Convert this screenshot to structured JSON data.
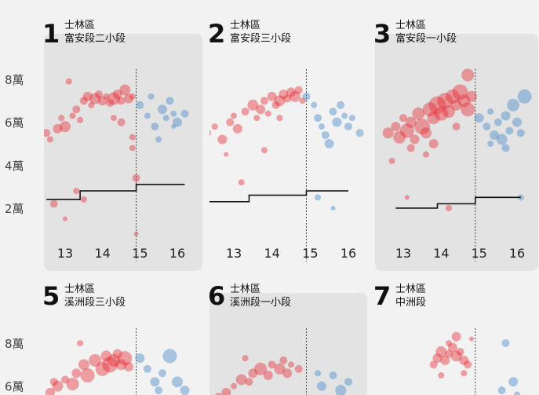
{
  "chart_data": {
    "type": "scatter",
    "y_ticks": [
      {
        "label": "8萬",
        "value": 80000
      },
      {
        "label": "6萬",
        "value": 60000
      },
      {
        "label": "4萬",
        "value": 40000
      },
      {
        "label": "2萬",
        "value": 20000
      }
    ],
    "y_ticks_row2": [
      {
        "label": "8萬",
        "value": 80000
      },
      {
        "label": "6萬",
        "value": 60000
      }
    ],
    "colors": {
      "before": "#e8262f",
      "after": "#3f86c6",
      "panel_bg": "#e3e3e3",
      "step": "#111111"
    },
    "panels": [
      {
        "number": "1",
        "district": "士林區",
        "section": "富安段二小段",
        "shaded": true,
        "x_ticks": [
          "13",
          "14",
          "15",
          "16"
        ],
        "divider_x": 14.9,
        "step_line": [
          [
            12.5,
            24000
          ],
          [
            13.4,
            24000
          ],
          [
            13.4,
            28000
          ],
          [
            14.9,
            28000
          ],
          [
            14.9,
            31000
          ],
          [
            16.2,
            31000
          ]
        ],
        "points_before": [
          [
            12.5,
            55000,
            5
          ],
          [
            12.6,
            52000,
            4
          ],
          [
            12.8,
            57000,
            6
          ],
          [
            12.9,
            62000,
            4
          ],
          [
            13.0,
            58000,
            7
          ],
          [
            13.2,
            63000,
            4
          ],
          [
            13.3,
            66000,
            5
          ],
          [
            13.4,
            61000,
            4
          ],
          [
            13.5,
            70000,
            5
          ],
          [
            13.6,
            72000,
            6
          ],
          [
            13.7,
            68000,
            4
          ],
          [
            13.8,
            71000,
            7
          ],
          [
            13.9,
            73000,
            5
          ],
          [
            14.0,
            70000,
            6
          ],
          [
            14.1,
            72000,
            4
          ],
          [
            14.2,
            69000,
            5
          ],
          [
            14.3,
            71000,
            8
          ],
          [
            14.4,
            73000,
            6
          ],
          [
            14.5,
            70000,
            5
          ],
          [
            14.6,
            75000,
            7
          ],
          [
            14.7,
            71000,
            6
          ],
          [
            14.8,
            72000,
            4
          ],
          [
            14.3,
            62000,
            4
          ],
          [
            14.5,
            60000,
            5
          ],
          [
            13.1,
            79000,
            4
          ],
          [
            13.3,
            28000,
            4
          ],
          [
            13.0,
            15000,
            3
          ],
          [
            12.7,
            22000,
            5
          ],
          [
            14.8,
            53000,
            4
          ],
          [
            13.5,
            24000,
            4
          ],
          [
            14.8,
            48000,
            4
          ],
          [
            14.9,
            8000,
            3
          ],
          [
            14.9,
            34000,
            5
          ]
        ],
        "points_after": [
          [
            15.0,
            68000,
            5
          ],
          [
            15.2,
            63000,
            4
          ],
          [
            15.4,
            58000,
            5
          ],
          [
            15.6,
            66000,
            6
          ],
          [
            15.7,
            62000,
            4
          ],
          [
            15.8,
            70000,
            5
          ],
          [
            15.9,
            64000,
            4
          ],
          [
            16.0,
            60000,
            6
          ],
          [
            16.2,
            64000,
            5
          ],
          [
            15.5,
            52000,
            4
          ],
          [
            15.3,
            72000,
            4
          ],
          [
            15.9,
            58000,
            3
          ]
        ]
      },
      {
        "number": "2",
        "district": "士林區",
        "section": "富安段三小段",
        "shaded": false,
        "x_ticks": [
          "13",
          "14",
          "15",
          "16"
        ],
        "divider_x": 14.9,
        "step_line": [
          [
            12.3,
            23000
          ],
          [
            13.4,
            23000
          ],
          [
            13.4,
            26000
          ],
          [
            14.9,
            26000
          ],
          [
            14.9,
            28000
          ],
          [
            16.0,
            28000
          ]
        ],
        "points_before": [
          [
            12.3,
            55000,
            5
          ],
          [
            12.5,
            58000,
            4
          ],
          [
            12.7,
            52000,
            6
          ],
          [
            12.9,
            60000,
            5
          ],
          [
            13.0,
            63000,
            4
          ],
          [
            13.1,
            57000,
            6
          ],
          [
            13.3,
            65000,
            5
          ],
          [
            13.5,
            68000,
            7
          ],
          [
            13.6,
            62000,
            4
          ],
          [
            13.7,
            66000,
            6
          ],
          [
            13.8,
            70000,
            5
          ],
          [
            13.9,
            64000,
            4
          ],
          [
            14.0,
            72000,
            6
          ],
          [
            14.1,
            68000,
            5
          ],
          [
            14.2,
            70000,
            7
          ],
          [
            14.3,
            73000,
            6
          ],
          [
            14.4,
            71000,
            5
          ],
          [
            14.5,
            74000,
            6
          ],
          [
            14.6,
            72000,
            7
          ],
          [
            14.7,
            75000,
            5
          ],
          [
            14.8,
            70000,
            4
          ],
          [
            13.8,
            47000,
            4
          ],
          [
            12.8,
            45000,
            3
          ],
          [
            13.2,
            32000,
            4
          ],
          [
            14.2,
            62000,
            4
          ]
        ],
        "points_after": [
          [
            14.9,
            72000,
            5
          ],
          [
            15.1,
            68000,
            4
          ],
          [
            15.2,
            62000,
            5
          ],
          [
            15.3,
            58000,
            4
          ],
          [
            15.4,
            54000,
            5
          ],
          [
            15.5,
            50000,
            6
          ],
          [
            15.6,
            65000,
            5
          ],
          [
            15.7,
            60000,
            6
          ],
          [
            15.8,
            68000,
            5
          ],
          [
            15.9,
            63000,
            4
          ],
          [
            16.0,
            58000,
            5
          ],
          [
            16.1,
            62000,
            4
          ],
          [
            16.3,
            55000,
            5
          ],
          [
            15.6,
            20000,
            3
          ],
          [
            15.2,
            25000,
            4
          ]
        ]
      },
      {
        "number": "3",
        "district": "士林區",
        "section": "富安段一小段",
        "shaded": true,
        "x_ticks": [
          "13",
          "14",
          "15",
          "16"
        ],
        "divider_x": 14.9,
        "step_line": [
          [
            12.8,
            20000
          ],
          [
            13.9,
            20000
          ],
          [
            13.9,
            22000
          ],
          [
            14.9,
            22000
          ],
          [
            14.9,
            25000
          ],
          [
            16.1,
            25000
          ]
        ],
        "points_before": [
          [
            12.6,
            55000,
            7
          ],
          [
            12.8,
            58000,
            6
          ],
          [
            12.9,
            53000,
            8
          ],
          [
            13.0,
            62000,
            5
          ],
          [
            13.1,
            56000,
            9
          ],
          [
            13.2,
            60000,
            7
          ],
          [
            13.3,
            52000,
            6
          ],
          [
            13.4,
            64000,
            8
          ],
          [
            13.5,
            58000,
            10
          ],
          [
            13.6,
            55000,
            7
          ],
          [
            13.7,
            66000,
            9
          ],
          [
            13.8,
            62000,
            8
          ],
          [
            13.9,
            68000,
            11
          ],
          [
            14.0,
            64000,
            9
          ],
          [
            14.1,
            70000,
            10
          ],
          [
            14.2,
            65000,
            8
          ],
          [
            14.3,
            72000,
            9
          ],
          [
            14.4,
            68000,
            7
          ],
          [
            14.5,
            74000,
            10
          ],
          [
            14.6,
            70000,
            8
          ],
          [
            14.7,
            66000,
            9
          ],
          [
            14.8,
            72000,
            7
          ],
          [
            13.2,
            48000,
            5
          ],
          [
            13.8,
            50000,
            6
          ],
          [
            14.4,
            58000,
            5
          ],
          [
            14.7,
            82000,
            8
          ],
          [
            13.6,
            45000,
            4
          ],
          [
            12.7,
            42000,
            4
          ],
          [
            14.2,
            20000,
            4
          ],
          [
            13.1,
            25000,
            3
          ]
        ],
        "points_after": [
          [
            15.0,
            62000,
            6
          ],
          [
            15.2,
            58000,
            5
          ],
          [
            15.3,
            65000,
            4
          ],
          [
            15.4,
            54000,
            6
          ],
          [
            15.5,
            60000,
            5
          ],
          [
            15.6,
            52000,
            7
          ],
          [
            15.7,
            63000,
            6
          ],
          [
            15.8,
            56000,
            5
          ],
          [
            15.9,
            68000,
            8
          ],
          [
            16.0,
            60000,
            6
          ],
          [
            16.1,
            55000,
            5
          ],
          [
            16.2,
            72000,
            9
          ],
          [
            15.3,
            50000,
            4
          ],
          [
            15.7,
            48000,
            5
          ],
          [
            16.1,
            25000,
            4
          ]
        ]
      },
      {
        "number": "5",
        "district": "士林區",
        "section": "溪洲段三小段",
        "shaded": false,
        "x_ticks": [],
        "divider_x": 14.9,
        "step_line": [],
        "points_before": [
          [
            12.6,
            57000,
            6
          ],
          [
            12.8,
            60000,
            7
          ],
          [
            13.0,
            63000,
            5
          ],
          [
            13.2,
            61000,
            8
          ],
          [
            13.3,
            66000,
            6
          ],
          [
            13.5,
            70000,
            7
          ],
          [
            13.6,
            65000,
            9
          ],
          [
            13.8,
            72000,
            8
          ],
          [
            14.0,
            68000,
            9
          ],
          [
            14.1,
            74000,
            7
          ],
          [
            14.2,
            70000,
            10
          ],
          [
            14.3,
            72000,
            8
          ],
          [
            14.4,
            75000,
            6
          ],
          [
            14.5,
            70000,
            7
          ],
          [
            14.6,
            73000,
            9
          ],
          [
            14.7,
            69000,
            6
          ],
          [
            13.4,
            80000,
            4
          ],
          [
            12.7,
            62000,
            5
          ]
        ],
        "points_after": [
          [
            15.0,
            73000,
            6
          ],
          [
            15.2,
            68000,
            5
          ],
          [
            15.4,
            62000,
            6
          ],
          [
            15.6,
            66000,
            5
          ],
          [
            15.8,
            74000,
            9
          ],
          [
            16.0,
            62000,
            7
          ],
          [
            16.2,
            58000,
            6
          ],
          [
            15.5,
            58000,
            5
          ]
        ]
      },
      {
        "number": "6",
        "district": "士林區",
        "section": "溪洲段一小段",
        "shaded": true,
        "x_ticks": [],
        "divider_x": 14.9,
        "step_line": [],
        "points_before": [
          [
            12.6,
            55000,
            5
          ],
          [
            12.8,
            57000,
            6
          ],
          [
            13.0,
            60000,
            4
          ],
          [
            13.2,
            63000,
            7
          ],
          [
            13.4,
            62000,
            5
          ],
          [
            13.5,
            66000,
            6
          ],
          [
            13.7,
            68000,
            8
          ],
          [
            13.9,
            65000,
            6
          ],
          [
            14.0,
            70000,
            5
          ],
          [
            14.2,
            68000,
            7
          ],
          [
            14.3,
            72000,
            5
          ],
          [
            14.4,
            66000,
            6
          ],
          [
            14.5,
            70000,
            4
          ],
          [
            14.7,
            68000,
            5
          ],
          [
            13.3,
            73000,
            4
          ]
        ],
        "points_after": [
          [
            15.3,
            60000,
            6
          ],
          [
            15.6,
            65000,
            5
          ],
          [
            15.8,
            58000,
            7
          ],
          [
            16.0,
            62000,
            5
          ],
          [
            15.2,
            66000,
            4
          ]
        ]
      },
      {
        "number": "7",
        "district": "士林區",
        "section": "中洲段",
        "shaded": false,
        "x_ticks": [],
        "divider_x": 14.9,
        "step_line": [],
        "points_before": [
          [
            13.8,
            70000,
            5
          ],
          [
            13.9,
            73000,
            6
          ],
          [
            14.0,
            76000,
            7
          ],
          [
            14.1,
            72000,
            6
          ],
          [
            14.2,
            75000,
            5
          ],
          [
            14.3,
            78000,
            6
          ],
          [
            14.4,
            74000,
            7
          ],
          [
            14.5,
            76000,
            5
          ],
          [
            14.6,
            72000,
            6
          ],
          [
            14.7,
            70000,
            5
          ],
          [
            14.4,
            83000,
            6
          ],
          [
            14.2,
            80000,
            4
          ],
          [
            14.0,
            65000,
            4
          ],
          [
            14.6,
            66000,
            4
          ],
          [
            14.8,
            82000,
            3
          ]
        ],
        "points_after": [
          [
            15.7,
            80000,
            5
          ],
          [
            15.9,
            62000,
            6
          ],
          [
            15.6,
            58000,
            5
          ],
          [
            16.0,
            56000,
            4
          ]
        ]
      }
    ]
  }
}
